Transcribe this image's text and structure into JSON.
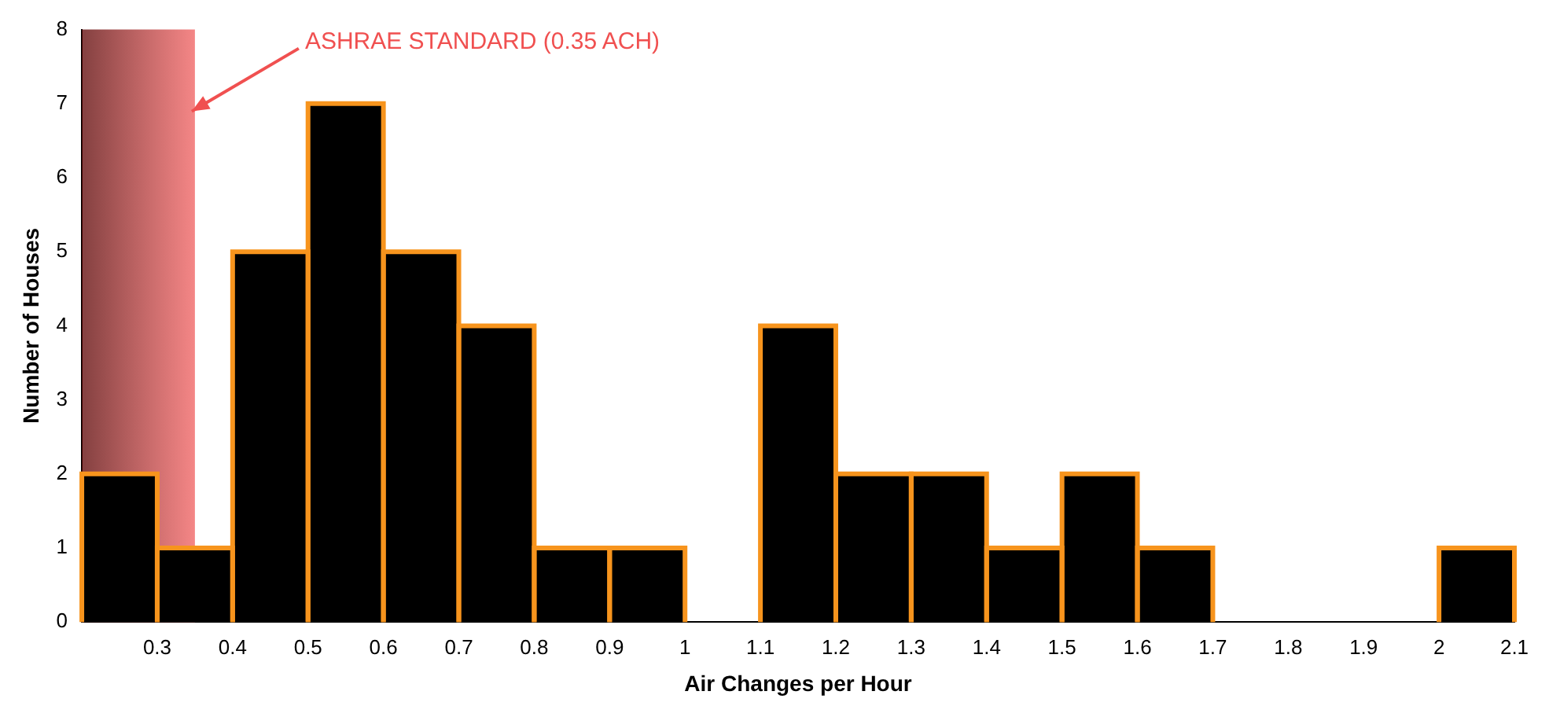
{
  "chart_data": {
    "type": "histogram",
    "xlabel": "Air Changes per Hour",
    "ylabel": "Number of Houses",
    "bins": [
      0.2,
      0.3,
      0.4,
      0.5,
      0.6,
      0.7,
      0.8,
      0.9,
      1.0,
      1.1,
      1.2,
      1.3,
      1.4,
      1.5,
      1.6,
      1.7,
      1.8,
      1.9,
      2.0,
      2.1
    ],
    "values": [
      2,
      1,
      5,
      7,
      5,
      4,
      1,
      1,
      0,
      4,
      2,
      2,
      1,
      2,
      1,
      0,
      0,
      0,
      1
    ],
    "color": "#000000",
    "xlim": [
      0.2,
      2.1
    ],
    "xticks": [
      0.3,
      0.4,
      0.5,
      0.6,
      0.7,
      0.8,
      0.9,
      1,
      1.1,
      1.2,
      1.3,
      1.4,
      1.5,
      1.6,
      1.7,
      1.8,
      1.9,
      2,
      2.1
    ],
    "ylim": [
      0,
      8
    ],
    "yticks": [
      0,
      1,
      2,
      3,
      4,
      5,
      6,
      7,
      8
    ],
    "grid": false,
    "legend": false,
    "bands": [
      {
        "axis": "x",
        "from": 0.2,
        "to": 0.35,
        "label": "ASHRAE STANDARD (0.35 ACH)",
        "color": "#f05050"
      }
    ]
  }
}
